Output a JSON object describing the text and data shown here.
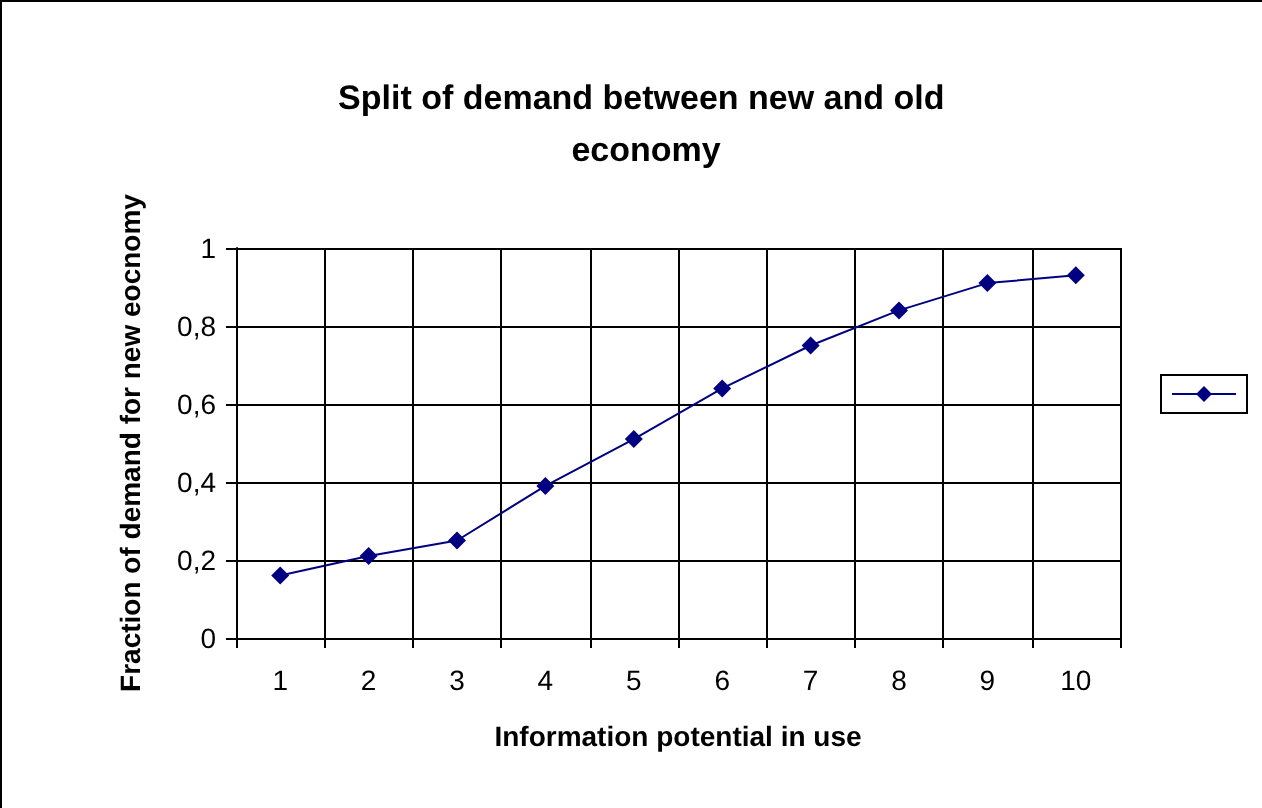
{
  "chart_data": {
    "type": "line",
    "title": "Split of demand between new and old economy",
    "xlabel": "Information potential in use",
    "ylabel": "Fraction of demand for new eocnomy",
    "categories": [
      "1",
      "2",
      "3",
      "4",
      "5",
      "6",
      "7",
      "8",
      "9",
      "10"
    ],
    "series": [
      {
        "color": "#000080",
        "values": [
          0.16,
          0.21,
          0.25,
          0.39,
          0.51,
          0.64,
          0.75,
          0.84,
          0.91,
          0.93
        ]
      }
    ],
    "ylim": [
      0,
      1
    ],
    "yticks": [
      0,
      {
        "value": 0.2,
        "label": "0,2"
      },
      {
        "value": 0.4,
        "label": "0,4"
      },
      {
        "value": 0.6,
        "label": "0,6"
      },
      {
        "value": 0.8,
        "label": "0,8"
      },
      1
    ],
    "grid": true,
    "marker": "diamond",
    "line_style": "solid"
  }
}
